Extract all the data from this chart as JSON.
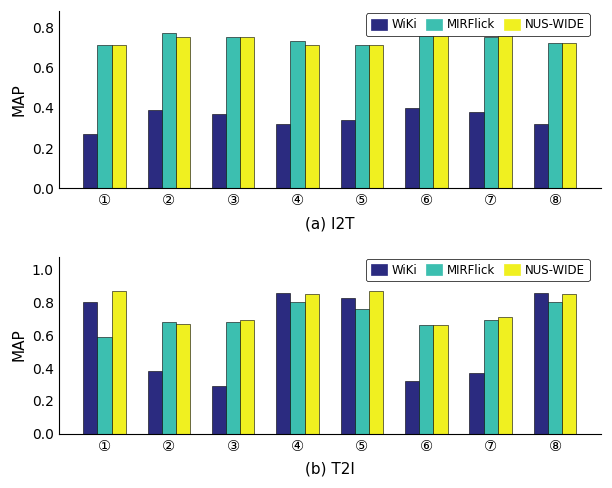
{
  "i2t": {
    "wiki": [
      0.27,
      0.39,
      0.37,
      0.32,
      0.34,
      0.4,
      0.38,
      0.32
    ],
    "mirflick": [
      0.71,
      0.77,
      0.75,
      0.73,
      0.71,
      0.76,
      0.75,
      0.72
    ],
    "nuswide": [
      0.71,
      0.75,
      0.75,
      0.71,
      0.71,
      0.76,
      0.76,
      0.72
    ]
  },
  "t2i": {
    "wiki": [
      0.8,
      0.38,
      0.29,
      0.86,
      0.83,
      0.32,
      0.37,
      0.86
    ],
    "mirflick": [
      0.59,
      0.68,
      0.68,
      0.8,
      0.76,
      0.66,
      0.69,
      0.8
    ],
    "nuswide": [
      0.87,
      0.67,
      0.69,
      0.85,
      0.87,
      0.66,
      0.71,
      0.85
    ]
  },
  "categories": [
    "①",
    "②",
    "③",
    "④",
    "⑤",
    "⑥",
    "⑦",
    "⑧"
  ],
  "colors": {
    "wiki": "#2b2b80",
    "mirflick": "#3cbfb0",
    "nuswide": "#f0f020"
  },
  "legend_labels": [
    "WiKi",
    "MIRFlick",
    "NUS-WIDE"
  ],
  "xlabel_i2t": "(a) I2T",
  "xlabel_t2i": "(b) T2I",
  "ylabel": "MAP",
  "ylim_i2t": [
    0,
    0.88
  ],
  "ylim_t2i": [
    0,
    1.08
  ],
  "yticks_i2t": [
    0,
    0.2,
    0.4,
    0.6,
    0.8
  ],
  "yticks_t2i": [
    0,
    0.2,
    0.4,
    0.6,
    0.8,
    1.0
  ],
  "bar_width": 0.22,
  "figsize": [
    6.12,
    4.88
  ],
  "dpi": 100
}
